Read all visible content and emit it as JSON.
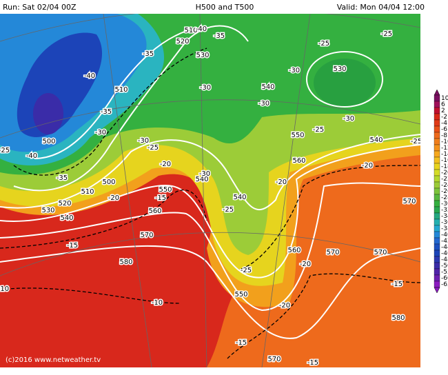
{
  "header": {
    "run": "Run: Sat 02/04 00Z",
    "title": "H500 and T500",
    "valid": "Valid: Mon 04/04 12:00"
  },
  "footer": "(c)2016 www.netweather.tv",
  "colorbar": [
    "10",
    "6",
    "2",
    "-2",
    "-4",
    "-6",
    "-8",
    "-10",
    "-12",
    "-14",
    "-16",
    "-18",
    "-20",
    "-22",
    "-24",
    "-26",
    "-28",
    "-30",
    "-32",
    "-34",
    "-36",
    "-38",
    "-40",
    "-42",
    "-44",
    "-46",
    "-48",
    "-50",
    "-55",
    "-60",
    "-65"
  ],
  "contour_labels": [
    "510",
    "-40",
    "-35",
    "520",
    "530",
    "-35",
    "-40",
    "510",
    "-35",
    "-30",
    "500",
    "-40",
    "-25",
    "-35",
    "500",
    "510",
    "-20",
    "520",
    "530",
    "540",
    "-30",
    "-25",
    "-20",
    "550",
    "-15",
    "560",
    "570",
    "580",
    "-15",
    "-10",
    "-10",
    "-30",
    "540",
    "-30",
    "540",
    "-25",
    "540",
    "-30",
    "-30",
    "530",
    "-25",
    "-25",
    "-30",
    "540",
    "-25",
    "550",
    "-25",
    "560",
    "-20",
    "-20",
    "570",
    "560",
    "570",
    "570",
    "-20",
    "-15",
    "-25",
    "550",
    "-20",
    "580",
    "-15",
    "570",
    "-15"
  ]
}
